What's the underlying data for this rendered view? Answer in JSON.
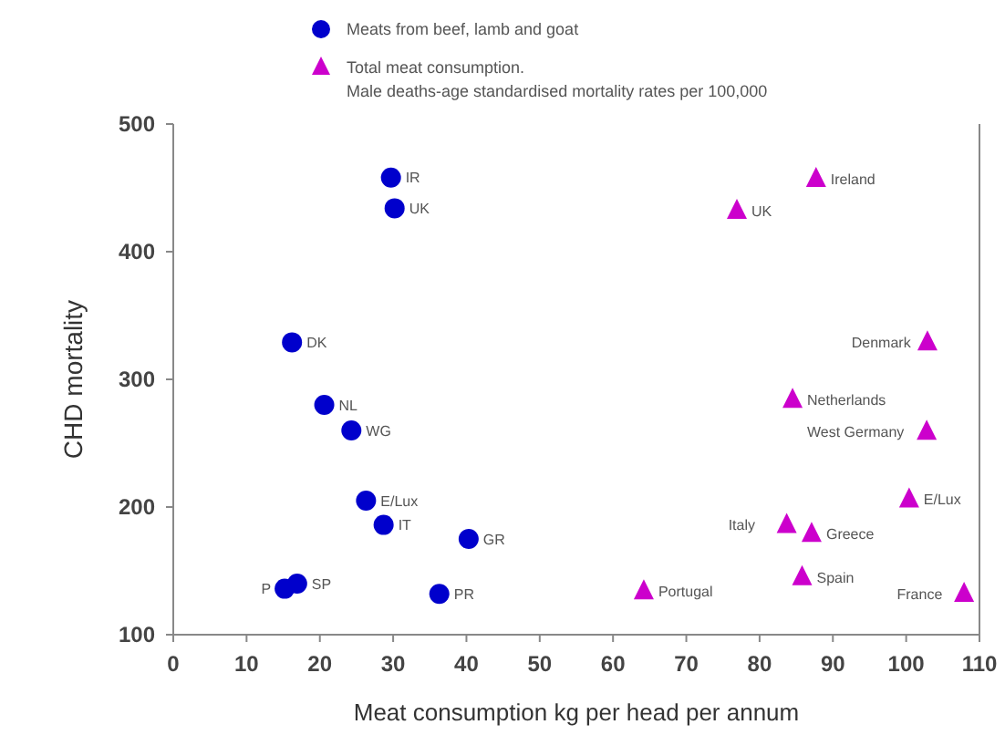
{
  "chart_data": {
    "type": "scatter",
    "xlabel": "Meat consumption kg per head per annum",
    "ylabel": "CHD mortality",
    "xlim": [
      0,
      110
    ],
    "ylim": [
      100,
      500
    ],
    "xticks": [
      0,
      10,
      20,
      30,
      40,
      50,
      60,
      70,
      80,
      90,
      100,
      110
    ],
    "yticks": [
      100,
      200,
      300,
      400,
      500
    ],
    "legend": "top",
    "grid": false,
    "series": [
      {
        "name": "Meats from beef, lamb and goat",
        "color": "#0000cc",
        "marker": "circle",
        "x": [
          29.7,
          30.2,
          16.2,
          20.6,
          24.3,
          26.3,
          28.7,
          40.3,
          36.3,
          16.9,
          15.2
        ],
        "values": [
          458,
          434,
          329,
          280,
          260,
          205,
          186,
          175,
          132,
          140,
          136
        ]
      },
      {
        "name": "Total meat consumption.\nMale deaths-age standardised mortality rates per 100,000",
        "color": "#cc00cc",
        "marker": "triangle",
        "x": [
          87.7,
          76.9,
          102.9,
          84.5,
          102.8,
          100.4,
          83.7,
          87.1,
          85.8,
          64.2,
          107.9
        ],
        "values": [
          457,
          432,
          329,
          284,
          259,
          206,
          186,
          179,
          145,
          134,
          132
        ]
      }
    ],
    "annotations": [
      {
        "text": "IR",
        "x": 29.7,
        "y": 458
      },
      {
        "text": "UK",
        "x": 30.2,
        "y": 434
      },
      {
        "text": "DK",
        "x": 16.2,
        "y": 329
      },
      {
        "text": "NL",
        "x": 20.6,
        "y": 280
      },
      {
        "text": "WG",
        "x": 24.3,
        "y": 260
      },
      {
        "text": "E/Lux",
        "x": 26.3,
        "y": 205
      },
      {
        "text": "IT",
        "x": 28.7,
        "y": 186
      },
      {
        "text": "GR",
        "x": 40.3,
        "y": 175
      },
      {
        "text": "PR",
        "x": 36.3,
        "y": 132
      },
      {
        "text": "SP",
        "x": 16.9,
        "y": 140
      },
      {
        "text": "P",
        "x": 15.2,
        "y": 136
      },
      {
        "text": "Ireland",
        "x": 87.7,
        "y": 457
      },
      {
        "text": "UK",
        "x": 76.9,
        "y": 432
      },
      {
        "text": "Denmark",
        "x": 102.9,
        "y": 329
      },
      {
        "text": "Netherlands",
        "x": 84.5,
        "y": 284
      },
      {
        "text": "West Germany",
        "x": 102.8,
        "y": 259
      },
      {
        "text": "E/Lux",
        "x": 100.4,
        "y": 206
      },
      {
        "text": "Italy",
        "x": 83.7,
        "y": 186
      },
      {
        "text": "Greece",
        "x": 87.1,
        "y": 179
      },
      {
        "text": "Spain",
        "x": 85.8,
        "y": 145
      },
      {
        "text": "Portugal",
        "x": 64.2,
        "y": 134
      },
      {
        "text": "France",
        "x": 107.9,
        "y": 132
      }
    ]
  }
}
